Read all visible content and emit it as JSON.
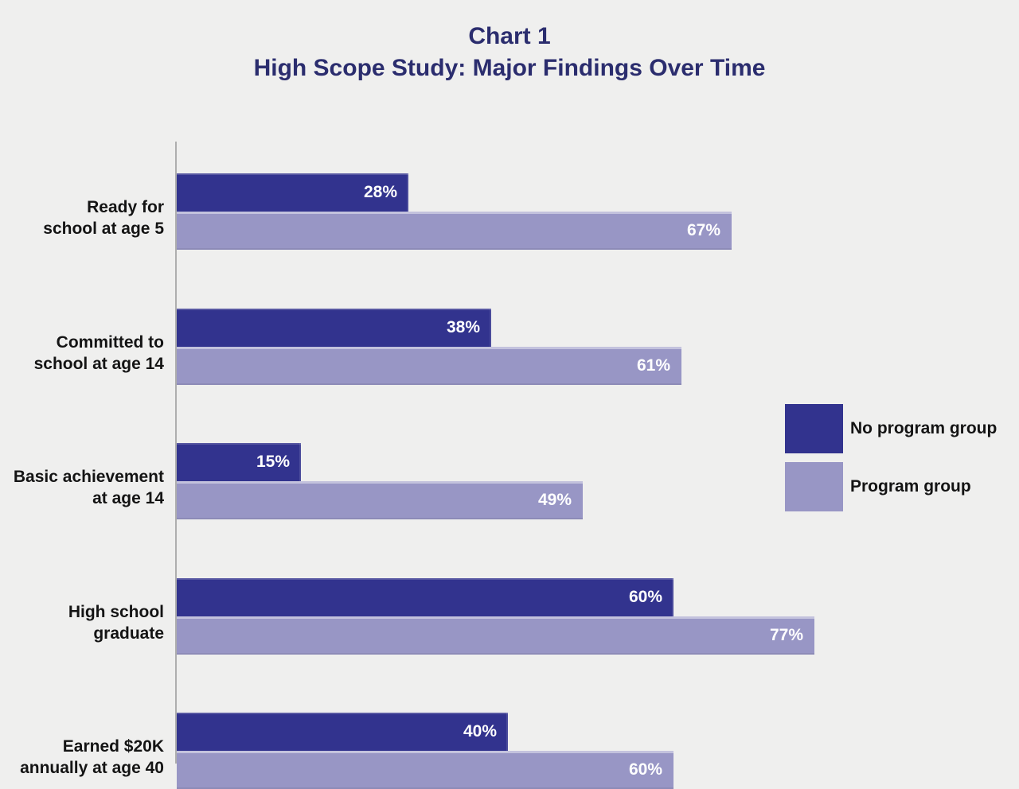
{
  "title": {
    "line1": "Chart 1",
    "line2": "High Scope Study: Major Findings Over Time"
  },
  "colors": {
    "no_program": "#32338e",
    "program": "#9896c5",
    "background": "#efefee",
    "title_text": "#2b2d6e",
    "axis_line": "#aeaeae",
    "bar_value_text": "#ffffff",
    "category_text": "#141414"
  },
  "chart_data": {
    "type": "bar",
    "orientation": "horizontal",
    "title": "Chart 1 — High Scope Study: Major Findings Over Time",
    "categories": [
      [
        "Ready for",
        "school at age 5"
      ],
      [
        "Committed to",
        "school at age 14"
      ],
      [
        "Basic achievement",
        "at age 14"
      ],
      [
        "High school",
        "graduate"
      ],
      [
        "Earned $20K",
        "annually at age 40"
      ]
    ],
    "series": [
      {
        "name": "No program group",
        "color_key": "no_program",
        "values": [
          28,
          38,
          15,
          60,
          40
        ]
      },
      {
        "name": "Program group",
        "color_key": "program",
        "values": [
          67,
          61,
          49,
          77,
          60
        ]
      }
    ],
    "value_suffix": "%",
    "xlim": [
      0,
      100
    ],
    "grid": false,
    "legend_position": "right"
  }
}
